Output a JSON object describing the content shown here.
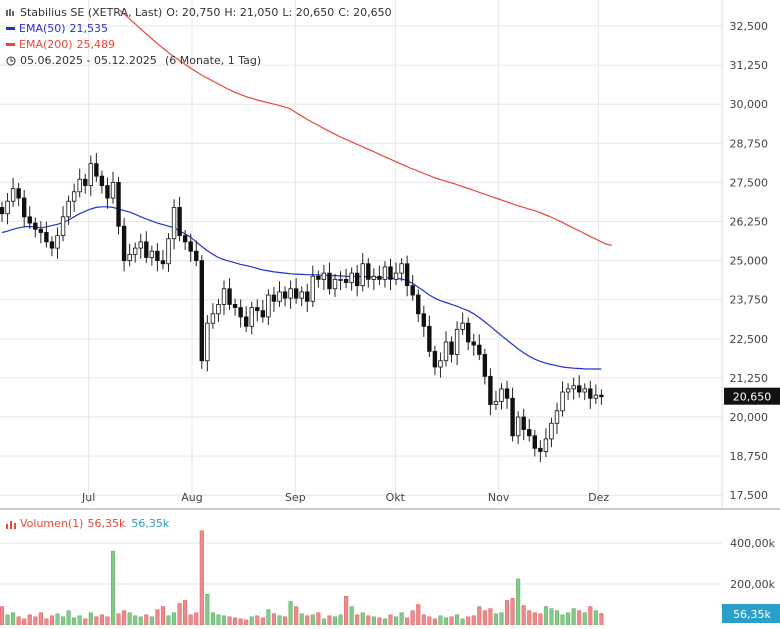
{
  "header": {
    "instrument": "Stabilius SE (XETRA, Last)",
    "ohlc": {
      "o": "O: 20,750",
      "h": "H: 21,050",
      "l": "L: 20,650",
      "c": "C: 20,650"
    },
    "ema50_label": "EMA(50)",
    "ema50_value": "21,535",
    "ema200_label": "EMA(200)",
    "ema200_value": "25,489",
    "range": "05.06.2025 - 05.12.2025",
    "range_note": "(6 Monate, 1 Tag)"
  },
  "volume_legend": {
    "label": "Volumen(1)",
    "value_red": "56,35k",
    "value_blue": "56,35k"
  },
  "colors": {
    "up": "#26a24a",
    "down": "#111111",
    "ema50": "#2233cc",
    "ema200": "#e8473a",
    "vol_up": "#85c98a",
    "vol_down": "#f08a8a",
    "grid": "#e6e6e6",
    "last_price_bg": "#111111",
    "last_vol_bg": "#2a9fc9"
  },
  "chart_data": {
    "type": "candlestick",
    "x_start": "2025-06-05",
    "x_end": "2025-12-05",
    "x_ticks": [
      "Jul",
      "Aug",
      "Sep",
      "Okt",
      "Nov",
      "Dez"
    ],
    "y_ticks": [
      "32,500",
      "31,250",
      "30,000",
      "28,750",
      "27,500",
      "26,250",
      "25,000",
      "23,750",
      "22,500",
      "21,250",
      "20,000",
      "18,750",
      "17,500"
    ],
    "y_range": [
      17.5,
      33.0
    ],
    "last_price_label": "20,650",
    "last_price": 20.65,
    "close": [
      26.5,
      26.9,
      27.3,
      27.0,
      26.4,
      26.2,
      26.0,
      25.9,
      25.6,
      25.4,
      25.8,
      26.4,
      26.9,
      27.2,
      27.6,
      27.4,
      28.1,
      27.7,
      27.4,
      27.0,
      27.5,
      26.1,
      25.0,
      25.2,
      25.4,
      25.6,
      25.1,
      25.3,
      25.0,
      24.9,
      25.7,
      26.7,
      25.8,
      25.6,
      25.3,
      25.0,
      21.8,
      23.0,
      23.3,
      23.6,
      24.1,
      23.6,
      23.5,
      23.2,
      22.9,
      23.5,
      23.4,
      23.2,
      23.9,
      23.7,
      24.0,
      23.8,
      24.1,
      23.8,
      24.0,
      23.7,
      24.5,
      24.4,
      24.6,
      24.1,
      24.4,
      24.4,
      24.3,
      24.6,
      24.2,
      24.9,
      24.4,
      24.5,
      24.4,
      24.8,
      24.4,
      24.6,
      24.9,
      24.2,
      23.9,
      23.3,
      22.9,
      22.1,
      21.6,
      21.8,
      22.4,
      22.0,
      22.8,
      23.0,
      22.4,
      22.3,
      22.0,
      21.3,
      20.4,
      20.5,
      20.9,
      20.6,
      19.4,
      20.0,
      19.6,
      19.4,
      19.0,
      18.9,
      19.3,
      19.8,
      20.2,
      20.8,
      20.9,
      21.0,
      20.8,
      20.9,
      20.6,
      20.7,
      20.65
    ],
    "ema50": [
      25.9,
      25.94,
      26.0,
      26.05,
      26.08,
      26.09,
      26.07,
      26.05,
      26.08,
      26.12,
      26.16,
      26.22,
      26.3,
      26.4,
      26.5,
      26.58,
      26.65,
      26.7,
      26.72,
      26.72,
      26.7,
      26.65,
      26.6,
      26.55,
      26.48,
      26.4,
      26.33,
      26.27,
      26.2,
      26.15,
      26.1,
      26.05,
      25.95,
      25.85,
      25.75,
      25.6,
      25.45,
      25.32,
      25.2,
      25.1,
      25.03,
      24.98,
      24.93,
      24.88,
      24.84,
      24.8,
      24.75,
      24.7,
      24.67,
      24.64,
      24.62,
      24.6,
      24.58,
      24.57,
      24.56,
      24.55,
      24.55,
      24.54,
      24.53,
      24.52,
      24.52,
      24.51,
      24.5,
      24.5,
      24.5,
      24.49,
      24.48,
      24.47,
      24.45,
      24.45,
      24.44,
      24.43,
      24.41,
      24.36,
      24.27,
      24.15,
      24.03,
      23.9,
      23.8,
      23.72,
      23.66,
      23.6,
      23.54,
      23.47,
      23.4,
      23.3,
      23.18,
      23.04,
      22.9,
      22.75,
      22.6,
      22.46,
      22.32,
      22.18,
      22.05,
      21.94,
      21.85,
      21.78,
      21.72,
      21.68,
      21.64,
      21.6,
      21.58,
      21.56,
      21.55,
      21.54,
      21.535,
      21.535,
      21.535
    ],
    "ema200": [
      33.0,
      32.82,
      32.64,
      32.46,
      32.28,
      32.1,
      31.92,
      31.76,
      31.6,
      31.46,
      31.32,
      31.18,
      31.05,
      30.93,
      30.82,
      30.71,
      30.6,
      30.5,
      30.4,
      30.32,
      30.24,
      30.18,
      30.12,
      30.07,
      30.02,
      29.97,
      29.92,
      29.85,
      29.72,
      29.6,
      29.48,
      29.37,
      29.26,
      29.15,
      29.05,
      28.95,
      28.86,
      28.77,
      28.68,
      28.59,
      28.5,
      28.41,
      28.32,
      28.23,
      28.14,
      28.05,
      27.96,
      27.88,
      27.8,
      27.72,
      27.64,
      27.58,
      27.52,
      27.46,
      27.39,
      27.32,
      27.25,
      27.18,
      27.11,
      27.04,
      26.97,
      26.9,
      26.83,
      26.76,
      26.7,
      26.64,
      26.58,
      26.5,
      26.42,
      26.33,
      26.23,
      26.13,
      26.03,
      25.93,
      25.83,
      25.73,
      25.63,
      25.53,
      25.489
    ],
    "volume_ticks": [
      "400,00k",
      "200,00k"
    ],
    "volume_range": [
      0,
      480
    ],
    "last_volume_label": "56,35k",
    "volume": [
      90,
      50,
      60,
      40,
      30,
      50,
      40,
      60,
      30,
      45,
      55,
      40,
      70,
      35,
      45,
      30,
      60,
      40,
      50,
      40,
      360,
      55,
      70,
      60,
      45,
      40,
      50,
      40,
      75,
      90,
      45,
      60,
      105,
      120,
      50,
      60,
      460,
      150,
      60,
      50,
      45,
      40,
      35,
      30,
      25,
      40,
      45,
      35,
      75,
      55,
      45,
      40,
      115,
      90,
      55,
      45,
      50,
      60,
      30,
      45,
      40,
      50,
      140,
      90,
      50,
      60,
      45,
      40,
      35,
      30,
      50,
      40,
      60,
      35,
      70,
      100,
      50,
      40,
      30,
      45,
      35,
      40,
      50,
      30,
      40,
      45,
      90,
      70,
      80,
      55,
      60,
      120,
      130,
      225,
      95,
      70,
      60,
      55,
      90,
      80,
      70,
      50,
      60,
      80,
      70,
      60,
      90,
      70,
      56.35
    ]
  }
}
